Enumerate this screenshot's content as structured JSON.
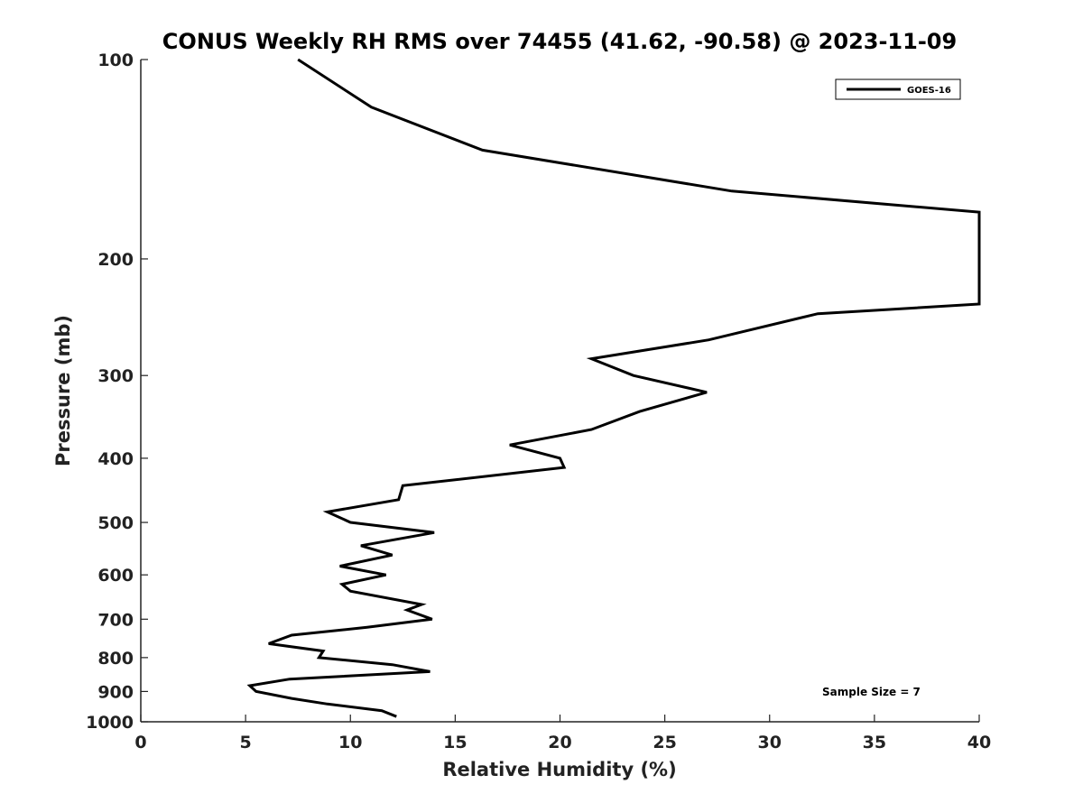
{
  "chart_data": {
    "type": "line",
    "title": "CONUS Weekly RH RMS over 74455 (41.62, -90.58) @ 2023-11-09",
    "xlabel": "Relative Humidity (%)",
    "ylabel": "Pressure (mb)",
    "xlim": [
      0,
      40
    ],
    "ylim": [
      100,
      1000
    ],
    "y_scale": "log",
    "y_reversed": true,
    "grid": false,
    "legend_position": "top-right",
    "x_ticks": [
      "0",
      "5",
      "10",
      "15",
      "20",
      "25",
      "30",
      "35",
      "40"
    ],
    "y_ticks": [
      "100",
      "200",
      "300",
      "400",
      "500",
      "600",
      "700",
      "800",
      "900",
      "1000"
    ],
    "annotation": "Sample Size = 7",
    "series": [
      {
        "name": "GOES-16",
        "color": "#000000",
        "points": [
          [
            7.5,
            100
          ],
          [
            11,
            118
          ],
          [
            16.3,
            137
          ],
          [
            28.2,
            158
          ],
          [
            40,
            170
          ],
          [
            40,
            234
          ],
          [
            32.3,
            242
          ],
          [
            27.1,
            265
          ],
          [
            21.5,
            283
          ],
          [
            23.5,
            300
          ],
          [
            27.0,
            318
          ],
          [
            23.8,
            340
          ],
          [
            21.5,
            362
          ],
          [
            17.6,
            382
          ],
          [
            20.0,
            400
          ],
          [
            20.2,
            413
          ],
          [
            12.5,
            440
          ],
          [
            12.3,
            462
          ],
          [
            8.9,
            482
          ],
          [
            10.0,
            500
          ],
          [
            14.0,
            518
          ],
          [
            10.5,
            542
          ],
          [
            12.0,
            560
          ],
          [
            9.5,
            582
          ],
          [
            11.7,
            600
          ],
          [
            9.6,
            620
          ],
          [
            10.0,
            635
          ],
          [
            13.4,
            665
          ],
          [
            12.7,
            678
          ],
          [
            13.9,
            700
          ],
          [
            10.8,
            720
          ],
          [
            7.2,
            740
          ],
          [
            6.1,
            762
          ],
          [
            8.7,
            782
          ],
          [
            8.5,
            800
          ],
          [
            12.0,
            820
          ],
          [
            13.8,
            840
          ],
          [
            7.1,
            862
          ],
          [
            5.2,
            882
          ],
          [
            5.5,
            900
          ],
          [
            7.2,
            922
          ],
          [
            8.9,
            940
          ],
          [
            11.5,
            962
          ],
          [
            12.2,
            982
          ]
        ]
      }
    ]
  }
}
